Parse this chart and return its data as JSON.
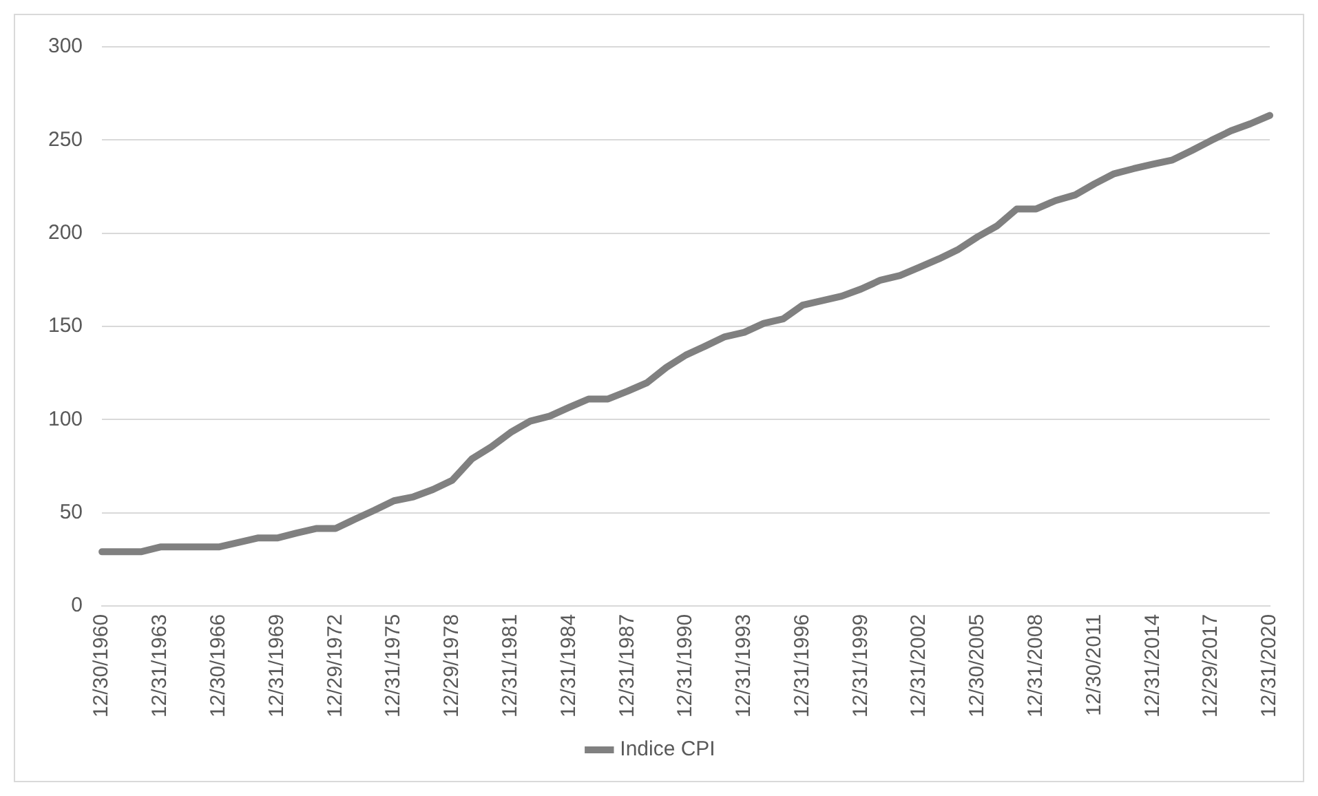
{
  "chart_data": {
    "type": "line",
    "categories": [
      "12/30/1960",
      null,
      null,
      "12/31/1963",
      null,
      null,
      "12/30/1966",
      null,
      null,
      "12/31/1969",
      null,
      null,
      "12/29/1972",
      null,
      null,
      "12/31/1975",
      null,
      null,
      "12/29/1978",
      null,
      null,
      "12/31/1981",
      null,
      null,
      "12/31/1984",
      null,
      null,
      "12/31/1987",
      null,
      null,
      "12/31/1990",
      null,
      null,
      "12/31/1993",
      null,
      null,
      "12/31/1996",
      null,
      null,
      "12/31/1999",
      null,
      null,
      "12/31/2002",
      null,
      null,
      "12/30/2005",
      null,
      null,
      "12/31/2008",
      null,
      null,
      "12/30/2011",
      null,
      null,
      "12/31/2014",
      null,
      null,
      "12/29/2017",
      null,
      null,
      "12/31/2020"
    ],
    "series": [
      {
        "name": "Indice CPI",
        "color": "#808080",
        "values": [
          29,
          29,
          29,
          31.6,
          31.6,
          31.6,
          31.6,
          34,
          36.4,
          36.4,
          39.1,
          41.5,
          41.5,
          46.5,
          51.3,
          56.4,
          58.5,
          62.4,
          67.4,
          78.8,
          85.3,
          93.1,
          99.1,
          101.8,
          106.5,
          111,
          111,
          115.2,
          119.7,
          128,
          134.6,
          139.4,
          144.4,
          146.8,
          151.6,
          154,
          161.4,
          163.8,
          166.2,
          170,
          174.8,
          177.3,
          181.7,
          186.2,
          191.3,
          198.1,
          204,
          213,
          213,
          217.5,
          220.5,
          226.5,
          231.9,
          234.6,
          237,
          239.3,
          244.4,
          249.8,
          254.9,
          258.7,
          263.2
        ]
      }
    ],
    "ylim": [
      0,
      300
    ],
    "yticks": [
      0,
      50,
      100,
      150,
      200,
      250,
      300
    ],
    "grid": "y",
    "legend": "bottom",
    "marker": "none",
    "line_style": "solid"
  }
}
